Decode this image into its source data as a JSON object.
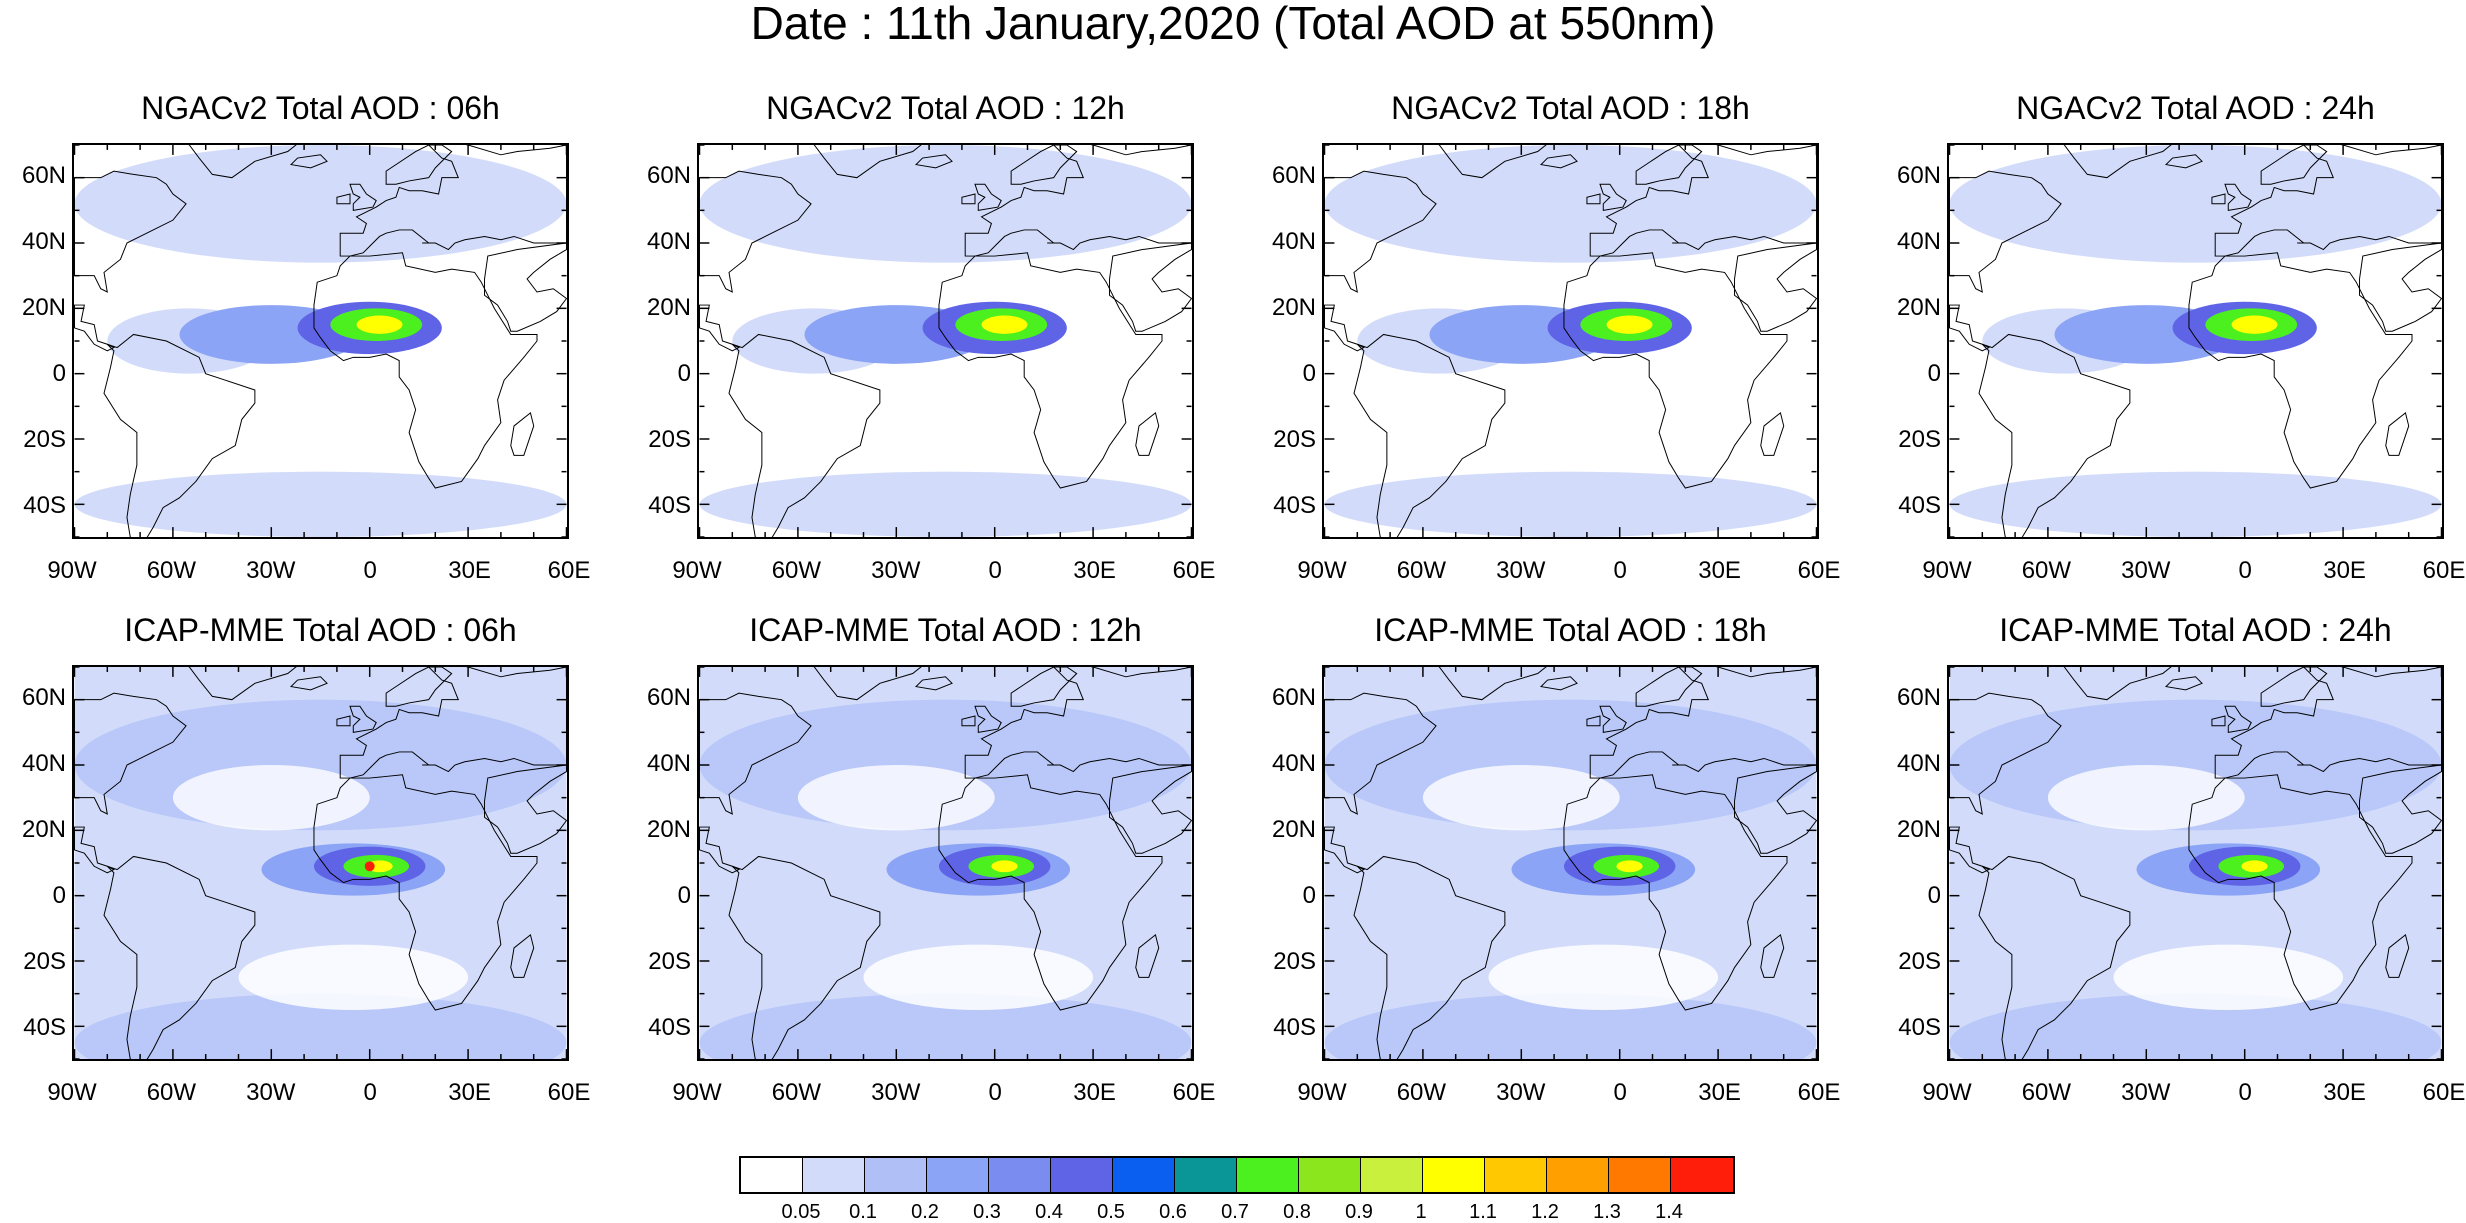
{
  "title": "Date : 11th January,2020 (Total AOD at 550nm)",
  "panels": [
    {
      "title": "NGACv2 Total AOD : 06h",
      "model": "NGACv2",
      "hour": "06h"
    },
    {
      "title": "NGACv2 Total AOD : 12h",
      "model": "NGACv2",
      "hour": "12h"
    },
    {
      "title": "NGACv2 Total AOD : 18h",
      "model": "NGACv2",
      "hour": "18h"
    },
    {
      "title": "NGACv2 Total AOD : 24h",
      "model": "NGACv2",
      "hour": "24h"
    },
    {
      "title": "ICAP-MME Total AOD : 06h",
      "model": "ICAP-MME",
      "hour": "06h"
    },
    {
      "title": "ICAP-MME Total AOD : 12h",
      "model": "ICAP-MME",
      "hour": "12h"
    },
    {
      "title": "ICAP-MME Total AOD : 18h",
      "model": "ICAP-MME",
      "hour": "18h"
    },
    {
      "title": "ICAP-MME Total AOD : 24h",
      "model": "ICAP-MME",
      "hour": "24h"
    }
  ],
  "lat_labels": [
    "60N",
    "40N",
    "20N",
    "0",
    "20S",
    "40S"
  ],
  "lon_labels": [
    "90W",
    "60W",
    "30W",
    "0",
    "30E",
    "60E"
  ],
  "colorbar": {
    "labels": [
      "0.05",
      "0.1",
      "0.2",
      "0.3",
      "0.4",
      "0.5",
      "0.6",
      "0.7",
      "0.8",
      "0.9",
      "1",
      "1.1",
      "1.2",
      "1.3",
      "1.4"
    ],
    "colors": [
      "#ffffff",
      "#d2dcfa",
      "#b0c0f7",
      "#8ca4f5",
      "#7b8cf0",
      "#5f64e6",
      "#0a5ff0",
      "#0a9696",
      "#4bf01e",
      "#8ce61e",
      "#c8f03c",
      "#ffff00",
      "#ffc800",
      "#ffa000",
      "#ff7800",
      "#ff1e0a"
    ]
  },
  "colors": {
    "ocean_low": "#ffffff",
    "background_aod": "#d2dcfa",
    "dust_plume": "#8ca4f5",
    "plume_core": "#5f64e6",
    "high_aod": "#4bf01e",
    "peak_aod": "#ffff00",
    "max_aod": "#ff1e0a",
    "coastline": "#000000"
  }
}
